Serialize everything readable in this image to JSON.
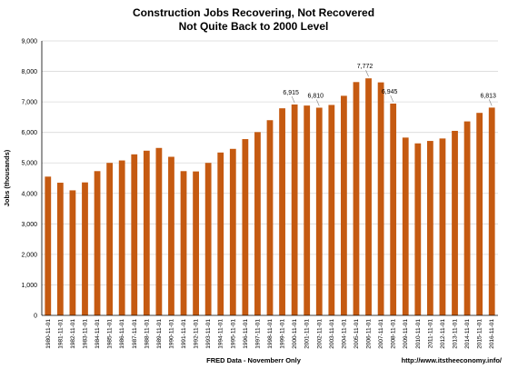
{
  "chart_data": {
    "type": "bar",
    "title_line1": "Construction Jobs Recovering, Not Recovered",
    "title_line2": "Not Quite Back to 2000 Level",
    "ylabel": "Jobs (thousands)",
    "xlabel": "FRED Data - Novemberr Only",
    "source": "http://www.itstheeconomy.info/",
    "ylim": [
      0,
      9000
    ],
    "yticks": [
      "0",
      "1,000",
      "2,000",
      "3,000",
      "4,000",
      "5,000",
      "6,000",
      "7,000",
      "8,000",
      "9,000"
    ],
    "grid": "horizontal",
    "bar_color": "#c55a11",
    "categories": [
      "1980-11-01",
      "1981-11-01",
      "1982-11-01",
      "1983-11-01",
      "1984-11-01",
      "1985-11-01",
      "1986-11-01",
      "1987-11-01",
      "1988-11-01",
      "1989-11-01",
      "1990-11-01",
      "1991-11-01",
      "1992-11-01",
      "1993-11-01",
      "1994-11-01",
      "1995-11-01",
      "1996-11-01",
      "1997-11-01",
      "1998-11-01",
      "1999-11-01",
      "2000-11-01",
      "2001-11-01",
      "2002-11-01",
      "2003-11-01",
      "2004-11-01",
      "2005-11-01",
      "2006-11-01",
      "2007-11-01",
      "2008-11-01",
      "2009-11-01",
      "2010-11-01",
      "2011-11-01",
      "2012-11-01",
      "2013-11-01",
      "2014-11-01",
      "2015-11-01",
      "2016-11-01"
    ],
    "values": [
      4550,
      4350,
      4100,
      4360,
      4730,
      5000,
      5080,
      5280,
      5400,
      5490,
      5200,
      4730,
      4720,
      5000,
      5340,
      5460,
      5780,
      6010,
      6400,
      6790,
      6915,
      6880,
      6810,
      6900,
      7200,
      7650,
      7772,
      7640,
      6945,
      5830,
      5640,
      5720,
      5800,
      6050,
      6360,
      6640,
      6813
    ],
    "data_labels": [
      {
        "index": 20,
        "text": "6,915"
      },
      {
        "index": 22,
        "text": "6,810"
      },
      {
        "index": 26,
        "text": "7,772"
      },
      {
        "index": 28,
        "text": "6,945"
      },
      {
        "index": 36,
        "text": "6,813"
      }
    ]
  }
}
